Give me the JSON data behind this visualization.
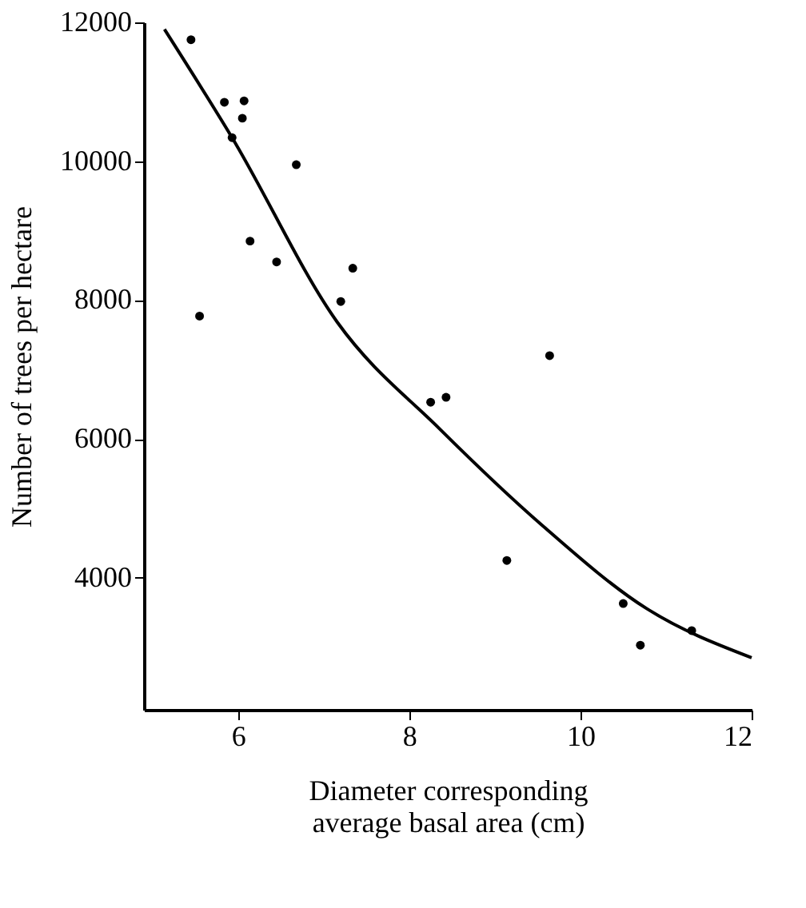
{
  "chart_data": {
    "type": "scatter",
    "xlabel": "Diameter corresponding average basal area (cm)",
    "ylabel": "Number of trees per hectare",
    "xlim": [
      4.9,
      12
    ],
    "ylim": [
      2100,
      12000
    ],
    "xticks": [
      6,
      8,
      10,
      12
    ],
    "yticks": [
      4000,
      6000,
      8000,
      10000,
      12000
    ],
    "grid": false,
    "series": [
      {
        "color": "#000000",
        "marker": "circle",
        "x": [
          5.45,
          5.84,
          6.07,
          6.05,
          5.93,
          6.68,
          6.14,
          6.45,
          5.55,
          7.34,
          7.2,
          8.25,
          8.43,
          9.64,
          9.14,
          10.5,
          10.7,
          11.3
        ],
        "values": [
          11750,
          10850,
          10870,
          10620,
          10340,
          9950,
          8850,
          8550,
          7770,
          8460,
          7980,
          6530,
          6600,
          7200,
          4250,
          3630,
          3030,
          3240
        ]
      },
      {
        "type": "line",
        "color": "#000000",
        "marker": "none",
        "x": [
          5.14,
          5.93,
          7.16,
          8.36,
          9.55,
          10.77,
          12
        ],
        "values": [
          11900,
          10340,
          7680,
          6140,
          4760,
          3560,
          2850
        ]
      }
    ]
  }
}
